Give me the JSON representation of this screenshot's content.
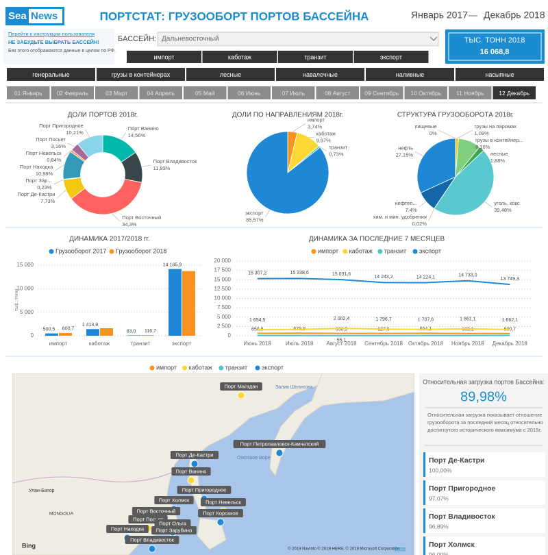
{
  "header": {
    "logo_left": "Sea",
    "logo_right": "News",
    "title": "ПОРТСТАТ: ГРУЗООБОРТ ПОРТОВ БАССЕЙНА",
    "date_from": "Январь 2017",
    "separator": "—",
    "date_to": "Декабрь 2018"
  },
  "instructions": {
    "link": "Перейти к инструкции пользователя",
    "warning": "НЕ ЗАБУДЬТЕ ВЫБРАТЬ БАССЕЙН!",
    "note": "Без этого отображаются данные в целом по РФ."
  },
  "basin": {
    "label": "БАССЕЙН:",
    "value": "Дальневосточный"
  },
  "directions": [
    "импорт",
    "каботаж",
    "транзит",
    "экспорт"
  ],
  "cargo": [
    "генеральные",
    "грузы в контейнерах",
    "лесные",
    "навалочные",
    "наливные",
    "насыпные"
  ],
  "months": {
    "items": [
      "01 Январь",
      "02 Февраль",
      "03 Март",
      "04 Апрель",
      "05 Май",
      "06 Июнь",
      "07 Июль",
      "08 Август",
      "09 Сентябрь",
      "10 Октябрь",
      "11 Ноябрь",
      "12 Декабрь"
    ],
    "selected": 11
  },
  "kpi": {
    "label": "ТЫС. ТОНН 2018",
    "value": "16 068,8"
  },
  "chart_data": [
    {
      "type": "pie",
      "donut": true,
      "title": "ДОЛИ ПОРТОВ 2018г.",
      "categories": [
        "Порт Ванино",
        "Порт Владивосток",
        "Порт Восточный",
        "Порт Де-Кастри",
        "Порт Зар...",
        "Порт Находка",
        "Порт Невельск",
        "Порт Посьет",
        "Порт Пригородное"
      ],
      "values": [
        14.56,
        11.83,
        34.3,
        7.73,
        0.23,
        10.98,
        0.84,
        3.16,
        10.21
      ],
      "value_labels": [
        "14,56%",
        "11,83%",
        "34,3%",
        "7,73%",
        "0,23%",
        "10,98%",
        "0,84%",
        "3,16%",
        "10,21%"
      ],
      "colors": [
        "#01b8aa",
        "#374649",
        "#fd625e",
        "#f2c80f",
        "#5f6b6d",
        "#3599b8",
        "#fe9666",
        "#a66999",
        "#8ad4eb"
      ]
    },
    {
      "type": "pie",
      "donut": false,
      "title": "ДОЛИ ПО НАПРАВЛЕНИЯМ 2018г.",
      "categories": [
        "импорт",
        "каботаж",
        "транзит",
        "экспорт"
      ],
      "values": [
        3.74,
        9.97,
        0.73,
        85.57
      ],
      "value_labels": [
        "3,74%",
        "9,97%",
        "0,73%",
        "85,57%"
      ],
      "colors": [
        "#f7931e",
        "#fdd835",
        "#4ec5c1",
        "#1e88d4"
      ]
    },
    {
      "type": "pie",
      "donut": false,
      "title": "СТРУКТУРА ГРУЗООБОРОТА 2018г.",
      "categories": [
        "грузы на паромах",
        "грузы в контейнер...",
        "лесные",
        "уголь, кокс",
        "хим. и мин. удобрения",
        "нефтеп...",
        "нефть",
        "пищевые"
      ],
      "values": [
        1.09,
        8.16,
        1.88,
        39.48,
        0.02,
        7.4,
        27.15,
        0
      ],
      "value_labels": [
        "1,09%",
        "8,16%",
        "1,88%",
        "39,48%",
        "0,02%",
        "7,4%",
        "27,15%",
        "0%"
      ],
      "colors": [
        "#f2c80f",
        "#7fcf7f",
        "#3aa655",
        "#5ac8cf",
        "#999999",
        "#1366a8",
        "#1e88d4",
        "#fd625e"
      ]
    },
    {
      "type": "bar",
      "title": "ДИНАМИКА 2017/2018 гг.",
      "y_label": "тыс. тонн",
      "categories": [
        "импорт",
        "каботаж",
        "транзит",
        "экспорт"
      ],
      "series": [
        {
          "name": "Грузооборот 2017",
          "color": "#1e88d4",
          "values": [
            500.5,
            1413.9,
            83.0,
            14185.9
          ],
          "value_labels": [
            "500,5",
            "1 413,9",
            "83,0",
            "14 185,9"
          ]
        },
        {
          "name": "Грузооборот 2018",
          "color": "#f7931e",
          "values": [
            600.7,
            1602,
            116.7,
            13750
          ],
          "value_labels": [
            "600,7",
            null,
            "116,7",
            null
          ]
        }
      ],
      "ylim": [
        0,
        15000
      ],
      "yticks": [
        0,
        {
          "value": 5000,
          "label": "5 000"
        },
        {
          "value": 10000,
          "label": "10 000"
        },
        {
          "value": 15000,
          "label": "15 000"
        }
      ],
      "grid": true
    },
    {
      "type": "line",
      "title": "ДИНАМИКА ЗА ПОСЛЕДНИЕ 7 МЕСЯЦЕВ",
      "categories": [
        "Июнь 2018",
        "Июль 2018",
        "Август 2018",
        "Сентябрь 2018",
        "Октябрь 2018",
        "Ноябрь 2018",
        "Декабрь 2018"
      ],
      "series": [
        {
          "name": "импорт",
          "color": "#f7931e",
          "values": [
            650.8,
            679.9,
            630.5,
            627.5,
            664.1,
            603.1,
            600.7
          ],
          "value_labels": [
            "650,8",
            "679,9",
            "630,5",
            "627,5",
            "664,1",
            "603,1",
            "600,7"
          ]
        },
        {
          "name": "каботаж",
          "color": "#fdd835",
          "values": [
            1654.5,
            1700,
            2002.4,
            1796.7,
            1707.6,
            1861.1,
            1662.1
          ],
          "value_labels": [
            "1 654,5",
            null,
            "2 002,4",
            "1 796,7",
            "1 707,6",
            "1 861,1",
            "1 662,1"
          ]
        },
        {
          "name": "транзит",
          "color": "#4ec5c1",
          "values": [
            80,
            70,
            55.1,
            60,
            75,
            70,
            85
          ],
          "value_labels": [
            null,
            null,
            "55,1",
            null,
            null,
            null,
            null
          ]
        },
        {
          "name": "экспорт",
          "color": "#1e88d4",
          "values": [
            15307.2,
            15338.6,
            15031.6,
            14243.2,
            14224.1,
            14733.0,
            13749.3
          ],
          "value_labels": [
            "15 307,2",
            "15 338,6",
            "15 031,6",
            "14 243,2",
            "14 224,1",
            "14 733,0",
            "13 749,3"
          ]
        }
      ],
      "ylim": [
        0,
        20000
      ],
      "yticks": [
        0,
        {
          "value": 2500,
          "label": "2 500"
        },
        {
          "value": 5000,
          "label": "5 000"
        },
        {
          "value": 7500,
          "label": "7 500"
        },
        {
          "value": 10000,
          "label": "10 000"
        },
        {
          "value": 12500,
          "label": "12 500"
        },
        {
          "value": 15000,
          "label": "15 000"
        },
        {
          "value": 17500,
          "label": "17 500"
        },
        {
          "value": 20000,
          "label": "20 000"
        }
      ],
      "grid": true
    }
  ],
  "map": {
    "legend": [
      {
        "name": "импорт",
        "color": "#f7931e"
      },
      {
        "name": "каботаж",
        "color": "#fdd835"
      },
      {
        "name": "транзит",
        "color": "#4ec5c1"
      },
      {
        "name": "экспорт",
        "color": "#1e88d4"
      }
    ],
    "ports": [
      "Порт Магадан",
      "Порт Петропавловск-Камчатский",
      "Порт Де-Кастри",
      "Порт Ванино",
      "Порт Пригородное",
      "Порт Холмск",
      "Порт Невельск",
      "Порт Корсаков",
      "Порт Восточный",
      "Порт Посьет",
      "Порт Ольга",
      "Порт Находка",
      "Порт Зарубино",
      "Порт Владивосток"
    ],
    "places": [
      "Улан-Батор",
      "MONGOLIA",
      "Охотское море",
      "Залив Шелихова"
    ],
    "provider": "Bing",
    "credits": "© 2019 NavInfo © 2019 HERE, © 2019 Microsoft Corporation",
    "terms": "Terms"
  },
  "load_panel": {
    "title": "Относительная загрузка портов Бассейна:",
    "value": "89,98%",
    "description": "Относительная загрузка показывает отношение грузооборота за последний месяц относительно достигнутого исторического максимума с 2015г.",
    "ports": [
      {
        "name": "Порт Де-Кастри",
        "value": "100,00%"
      },
      {
        "name": "Порт Пригородное",
        "value": "97,07%"
      },
      {
        "name": "Порт Владивосток",
        "value": "96,89%"
      },
      {
        "name": "Порт Холмск",
        "value": "96,00%"
      }
    ]
  }
}
